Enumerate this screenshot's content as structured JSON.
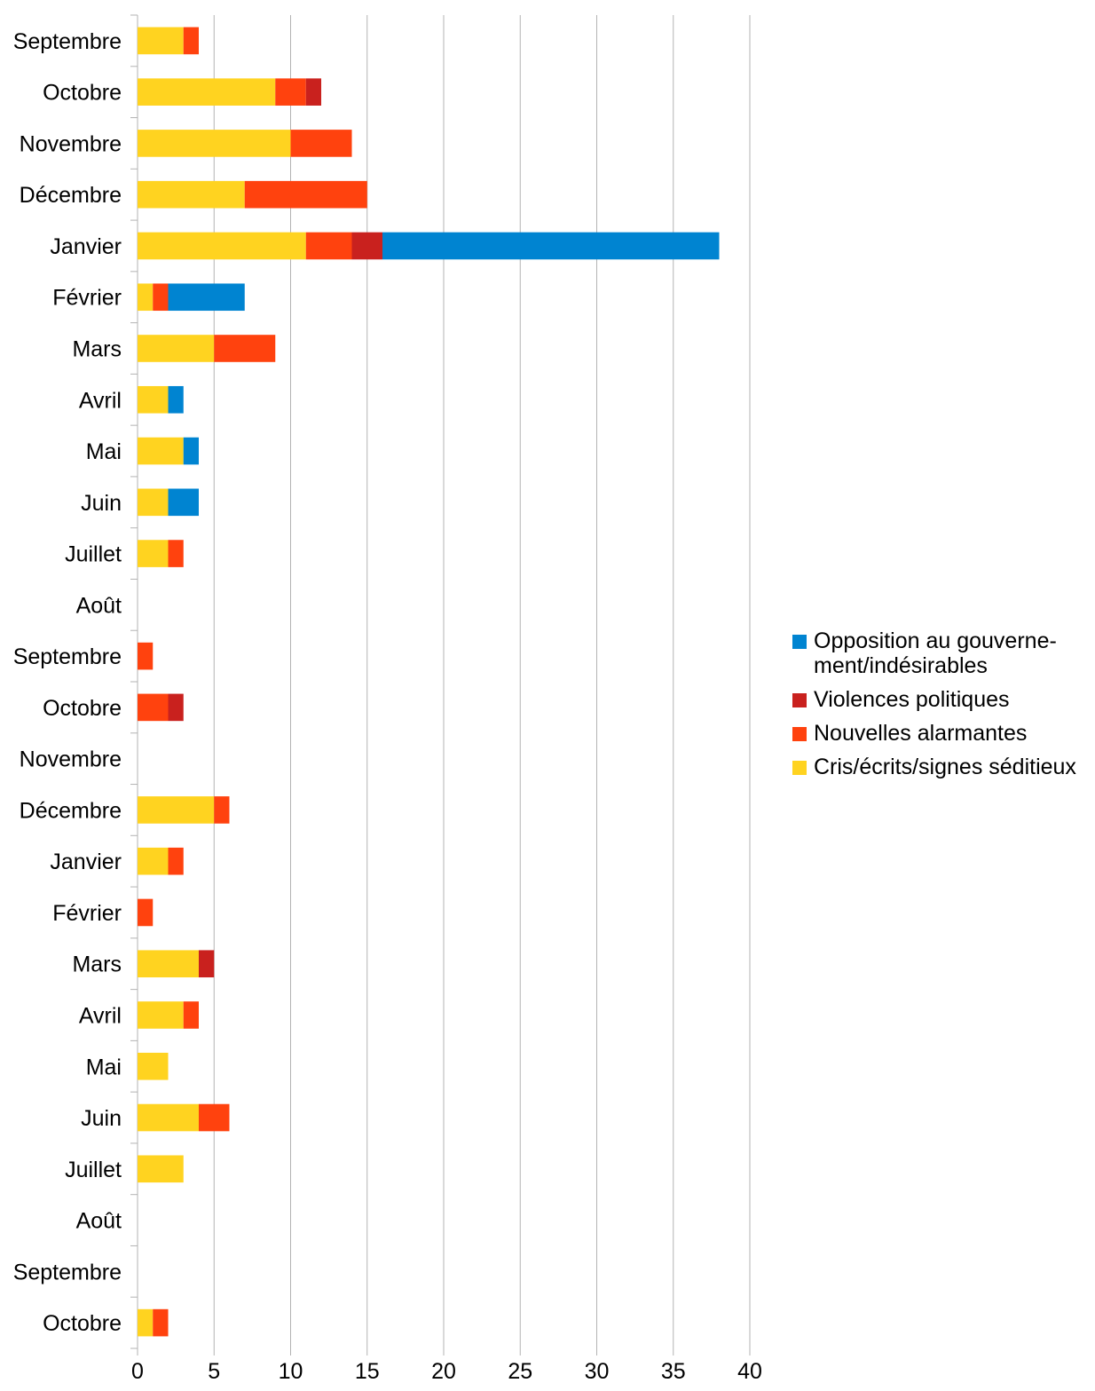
{
  "chart_data": {
    "type": "bar",
    "orientation": "horizontal",
    "stacked": true,
    "title": "",
    "xlabel": "",
    "ylabel": "",
    "xlim": [
      0,
      40
    ],
    "x_ticks": [
      "0",
      "5",
      "10",
      "15",
      "20",
      "25",
      "30",
      "35",
      "40"
    ],
    "grid": "vertical",
    "legend": "right",
    "categories": [
      "Septembre",
      "Octobre",
      "Novembre",
      "Décembre",
      "Janvier",
      "Février",
      "Mars",
      "Avril",
      "Mai",
      "Juin",
      "Juillet",
      "Août",
      "Septembre",
      "Octobre",
      "Novembre",
      "Décembre",
      "Janvier",
      "Février",
      "Mars",
      "Avril",
      "Mai",
      "Juin",
      "Juillet",
      "Août",
      "Septembre",
      "Octobre"
    ],
    "series": [
      {
        "name": "Cris/écrits/signes séditieux",
        "color": "#ffd320",
        "values": [
          3,
          9,
          10,
          7,
          11,
          1,
          5,
          2,
          3,
          2,
          2,
          0,
          0,
          0,
          0,
          5,
          2,
          0,
          4,
          3,
          2,
          4,
          3,
          0,
          0,
          1
        ]
      },
      {
        "name": "Nouvelles alarmantes",
        "color": "#ff420e",
        "values": [
          1,
          2,
          4,
          8,
          3,
          1,
          4,
          0,
          0,
          0,
          1,
          0,
          1,
          2,
          0,
          1,
          1,
          1,
          0,
          1,
          0,
          2,
          0,
          0,
          0,
          1
        ]
      },
      {
        "name": "Violences politiques",
        "color": "#c9211e",
        "values": [
          0,
          1,
          0,
          0,
          2,
          0,
          0,
          0,
          0,
          0,
          0,
          0,
          0,
          1,
          0,
          0,
          0,
          0,
          1,
          0,
          0,
          0,
          0,
          0,
          0,
          0
        ]
      },
      {
        "name": "Opposition au gouverne-ment/indésirables",
        "legend_lines": [
          "Opposition au gouverne-",
          "ment/indésirables"
        ],
        "color": "#0084d1",
        "values": [
          0,
          0,
          0,
          0,
          22,
          5,
          0,
          1,
          1,
          2,
          0,
          0,
          0,
          0,
          0,
          0,
          0,
          0,
          0,
          0,
          0,
          0,
          0,
          0,
          0,
          0
        ]
      }
    ],
    "legend_order": [
      3,
      2,
      1,
      0
    ]
  }
}
